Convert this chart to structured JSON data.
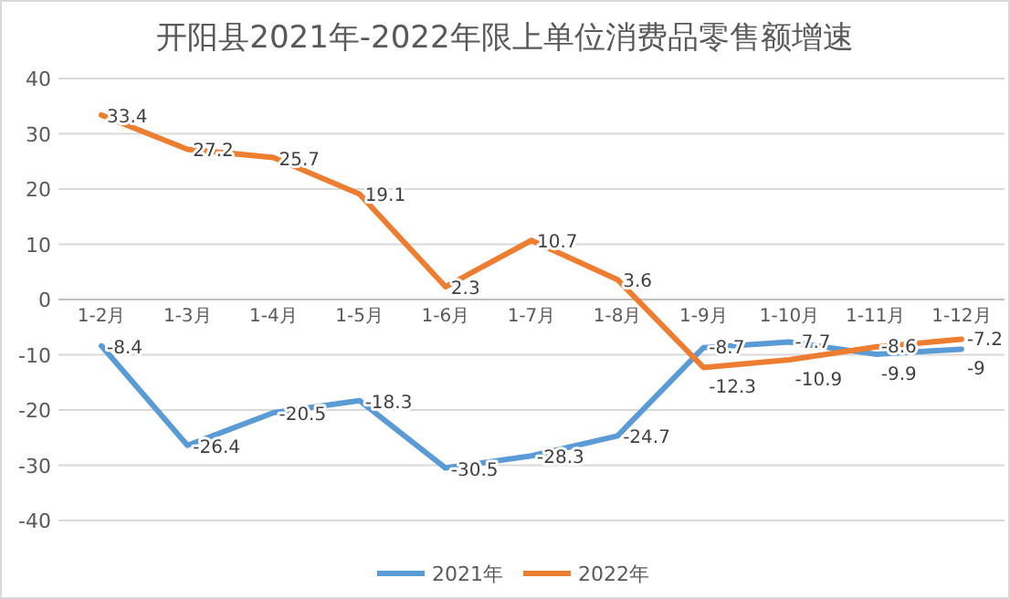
{
  "chart_data": {
    "type": "line",
    "title": "开阳县2021年-2022年限上单位消费品零售额增速",
    "categories": [
      "1-2月",
      "1-3月",
      "1-4月",
      "1-5月",
      "1-6月",
      "1-7月",
      "1-8月",
      "1-9月",
      "1-10月",
      "1-11月",
      "1-12月"
    ],
    "series": [
      {
        "name": "2021年",
        "color": "#5b9bd5",
        "values": [
          -8.4,
          -26.4,
          -20.5,
          -18.3,
          -30.5,
          -28.3,
          -24.7,
          -8.7,
          -7.7,
          -9.9,
          -9
        ]
      },
      {
        "name": "2022年",
        "color": "#ed7d31",
        "values": [
          33.4,
          27.2,
          25.7,
          19.1,
          2.3,
          10.7,
          3.6,
          -12.3,
          -10.9,
          -8.6,
          -7.2
        ]
      }
    ],
    "ylim": [
      -40,
      40
    ],
    "yticks": [
      -40,
      -30,
      -20,
      -10,
      0,
      10,
      20,
      30,
      40
    ],
    "grid": "y",
    "legend": "bottom",
    "data_labels": true,
    "marker": "none",
    "line_style": "solid"
  }
}
